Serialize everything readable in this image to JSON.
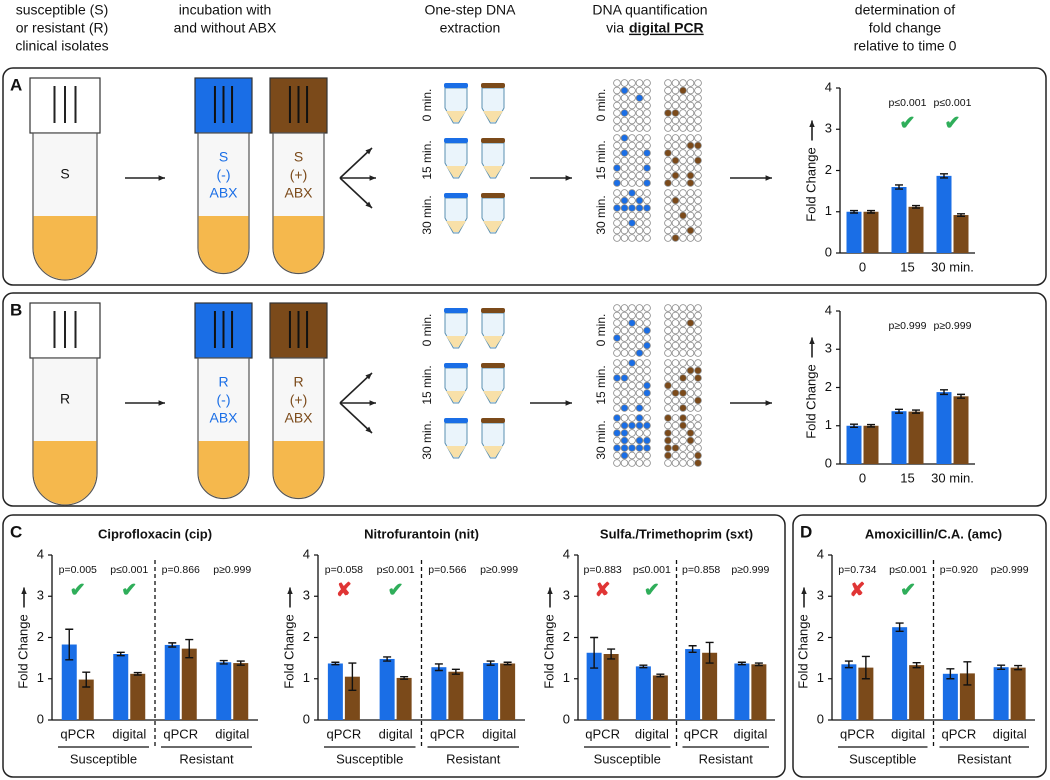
{
  "headers": [
    [
      "susceptible (S)",
      "or resistant (R)",
      "clinical isolates"
    ],
    [
      "incubation with",
      "and without ABX"
    ],
    [
      "One-step DNA",
      "extraction"
    ],
    [
      "DNA quantification",
      "via"
    ],
    [
      "determination of",
      "fold change",
      "relative to time 0"
    ]
  ],
  "emphasis": "digital PCR",
  "letters": [
    "A",
    "B",
    "C",
    "D"
  ],
  "panels": [
    {
      "isolate": "S",
      "tubes": [
        [
          "S",
          "(-)",
          "ABX"
        ],
        [
          "S",
          "(+)",
          "ABX"
        ]
      ]
    },
    {
      "isolate": "R",
      "tubes": [
        [
          "R",
          "(-)",
          "ABX"
        ],
        [
          "R",
          "(+)",
          "ABX"
        ]
      ]
    }
  ],
  "times": [
    "0 min.",
    "15 min.",
    "30 min."
  ],
  "tube_colors": [
    "#1a6ee6",
    "#7b4a1a"
  ],
  "chart_data": [
    {
      "type": "bar",
      "ylabel": "Fold Change",
      "categories": [
        "0",
        "15",
        "30 min."
      ],
      "series": [
        {
          "color": "#1a6ee6",
          "values": [
            1.0,
            1.6,
            1.87
          ],
          "errors": [
            0.03,
            0.05,
            0.05
          ]
        },
        {
          "color": "#7b4a1a",
          "values": [
            1.0,
            1.12,
            0.92
          ],
          "errors": [
            0.03,
            0.03,
            0.03
          ]
        }
      ],
      "ylim": [
        0,
        4
      ],
      "yticks": [
        0,
        1,
        2,
        3,
        4
      ],
      "annotations": [
        null,
        "p≤0.001",
        "p≤0.001"
      ],
      "symbols": [
        null,
        {
          "text": "✔",
          "color": "#2fae5a"
        },
        {
          "text": "✔",
          "color": "#2fae5a"
        }
      ]
    },
    {
      "type": "bar",
      "ylabel": "Fold Change",
      "categories": [
        "0",
        "15",
        "30 min."
      ],
      "series": [
        {
          "color": "#1a6ee6",
          "values": [
            1.0,
            1.38,
            1.88
          ],
          "errors": [
            0.04,
            0.05,
            0.06
          ]
        },
        {
          "color": "#7b4a1a",
          "values": [
            1.0,
            1.37,
            1.77
          ],
          "errors": [
            0.03,
            0.04,
            0.05
          ]
        }
      ],
      "ylim": [
        0,
        4
      ],
      "yticks": [
        0,
        1,
        2,
        3,
        4
      ],
      "annotations": [
        null,
        "p≥0.999",
        "p≥0.999"
      ]
    },
    {
      "type": "bar",
      "title": "Ciprofloxacin (cip)",
      "ylabel": "Fold Change",
      "categories": [
        "qPCR",
        "digital",
        "qPCR",
        "digital"
      ],
      "groups": [
        "Susceptible",
        "Resistant"
      ],
      "series": [
        {
          "color": "#1a6ee6",
          "values": [
            1.83,
            1.6,
            1.82,
            1.4
          ],
          "errors": [
            0.37,
            0.04,
            0.05,
            0.04
          ]
        },
        {
          "color": "#7b4a1a",
          "values": [
            0.98,
            1.12,
            1.73,
            1.38
          ],
          "errors": [
            0.18,
            0.03,
            0.22,
            0.05
          ]
        }
      ],
      "ylim": [
        0,
        4
      ],
      "yticks": [
        0,
        1,
        2,
        3,
        4
      ],
      "annotations": [
        "p=0.005",
        "p≤0.001",
        "p=0.866",
        "p≥0.999"
      ],
      "symbols": [
        {
          "text": "✔",
          "color": "#2fae5a"
        },
        {
          "text": "✔",
          "color": "#2fae5a"
        },
        null,
        null
      ]
    },
    {
      "type": "bar",
      "title": "Nitrofurantoin (nit)",
      "ylabel": "Fold Change",
      "categories": [
        "qPCR",
        "digital",
        "qPCR",
        "digital"
      ],
      "groups": [
        "Susceptible",
        "Resistant"
      ],
      "series": [
        {
          "color": "#1a6ee6",
          "values": [
            1.37,
            1.48,
            1.28,
            1.38
          ],
          "errors": [
            0.03,
            0.05,
            0.08,
            0.05
          ]
        },
        {
          "color": "#7b4a1a",
          "values": [
            1.05,
            1.02,
            1.17,
            1.37
          ],
          "errors": [
            0.33,
            0.03,
            0.06,
            0.03
          ]
        }
      ],
      "ylim": [
        0,
        4
      ],
      "yticks": [
        0,
        1,
        2,
        3,
        4
      ],
      "annotations": [
        "p=0.058",
        "p≤0.001",
        "p=0.566",
        "p≥0.999"
      ],
      "symbols": [
        {
          "text": "✘",
          "color": "#e03535"
        },
        {
          "text": "✔",
          "color": "#2fae5a"
        },
        null,
        null
      ]
    },
    {
      "type": "bar",
      "title": "Sulfa./Trimethoprim (sxt)",
      "ylabel": "Fold Change",
      "categories": [
        "qPCR",
        "digital",
        "qPCR",
        "digital"
      ],
      "groups": [
        "Susceptible",
        "Resistant"
      ],
      "series": [
        {
          "color": "#1a6ee6",
          "values": [
            1.63,
            1.3,
            1.72,
            1.37
          ],
          "errors": [
            0.37,
            0.03,
            0.08,
            0.03
          ]
        },
        {
          "color": "#7b4a1a",
          "values": [
            1.6,
            1.08,
            1.63,
            1.35
          ],
          "errors": [
            0.12,
            0.03,
            0.25,
            0.03
          ]
        }
      ],
      "ylim": [
        0,
        4
      ],
      "yticks": [
        0,
        1,
        2,
        3,
        4
      ],
      "annotations": [
        "p=0.883",
        "p≤0.001",
        "p=0.858",
        "p≥0.999"
      ],
      "symbols": [
        {
          "text": "✘",
          "color": "#e03535"
        },
        {
          "text": "✔",
          "color": "#2fae5a"
        },
        null,
        null
      ]
    },
    {
      "type": "bar",
      "title": "Amoxicillin/C.A. (amc)",
      "ylabel": "Fold Change",
      "categories": [
        "qPCR",
        "digital",
        "qPCR",
        "digital"
      ],
      "groups": [
        "Susceptible",
        "Resistant"
      ],
      "series": [
        {
          "color": "#1a6ee6",
          "values": [
            1.35,
            2.25,
            1.12,
            1.28
          ],
          "errors": [
            0.08,
            0.1,
            0.12,
            0.05
          ]
        },
        {
          "color": "#7b4a1a",
          "values": [
            1.27,
            1.33,
            1.13,
            1.27
          ],
          "errors": [
            0.27,
            0.06,
            0.28,
            0.05
          ]
        }
      ],
      "ylim": [
        0,
        4
      ],
      "yticks": [
        0,
        1,
        2,
        3,
        4
      ],
      "annotations": [
        "p=0.734",
        "p≤0.001",
        "p=0.920",
        "p≥0.999"
      ],
      "symbols": [
        {
          "text": "✘",
          "color": "#e03535"
        },
        {
          "text": "✔",
          "color": "#2fae5a"
        },
        null,
        null
      ]
    }
  ]
}
